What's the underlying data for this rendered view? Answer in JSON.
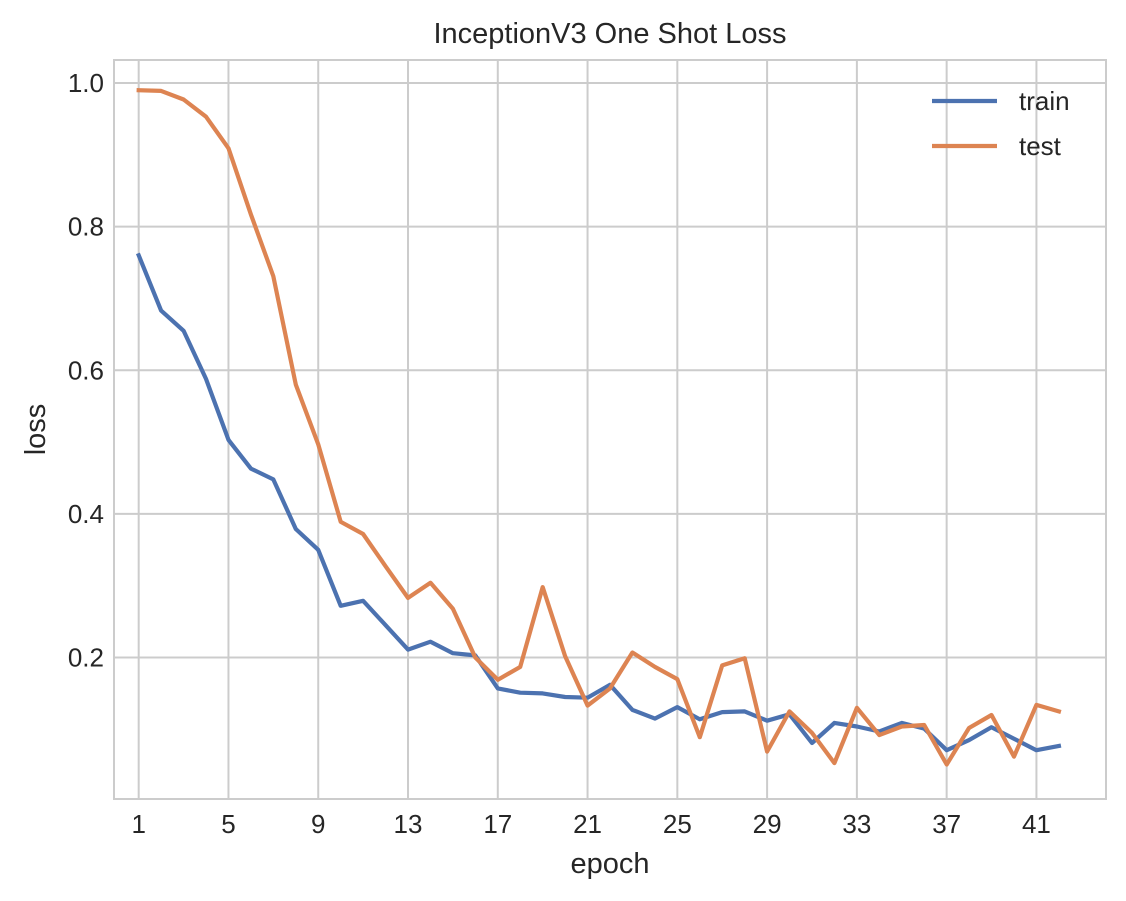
{
  "chart_data": {
    "type": "line",
    "title": "InceptionV3 One Shot Loss",
    "xlabel": "epoch",
    "ylabel": "loss",
    "xlim": [
      -0.1,
      44.1
    ],
    "ylim": [
      0.003,
      1.032
    ],
    "grid": true,
    "legend_position": "top-right",
    "x": [
      1,
      2,
      3,
      4,
      5,
      6,
      7,
      8,
      9,
      10,
      11,
      12,
      13,
      14,
      15,
      16,
      17,
      18,
      19,
      20,
      21,
      22,
      23,
      24,
      25,
      26,
      27,
      28,
      29,
      30,
      31,
      32,
      33,
      34,
      35,
      36,
      37,
      38,
      39,
      40,
      41,
      42
    ],
    "x_ticks": [
      1,
      5,
      9,
      13,
      17,
      21,
      25,
      29,
      33,
      37,
      41
    ],
    "x_tick_labels": [
      "1",
      "5",
      "9",
      "13",
      "17",
      "21",
      "25",
      "29",
      "33",
      "37",
      "41"
    ],
    "y_ticks": [
      0.2,
      0.4,
      0.6,
      0.8,
      1.0
    ],
    "y_tick_labels": [
      "0.2",
      "0.4",
      "0.6",
      "0.8",
      "1.0"
    ],
    "series": [
      {
        "name": "train",
        "color": "#4c72b0",
        "values": [
          0.76,
          0.683,
          0.655,
          0.588,
          0.503,
          0.463,
          0.448,
          0.379,
          0.35,
          0.272,
          0.279,
          0.245,
          0.211,
          0.222,
          0.206,
          0.203,
          0.157,
          0.151,
          0.15,
          0.145,
          0.144,
          0.162,
          0.127,
          0.115,
          0.131,
          0.114,
          0.124,
          0.125,
          0.112,
          0.121,
          0.081,
          0.109,
          0.104,
          0.097,
          0.109,
          0.101,
          0.071,
          0.085,
          0.103,
          0.087,
          0.071,
          0.077
        ]
      },
      {
        "name": "test",
        "color": "#dd8452",
        "values": [
          0.99,
          0.989,
          0.977,
          0.953,
          0.909,
          0.817,
          0.731,
          0.58,
          0.497,
          0.389,
          0.372,
          0.327,
          0.283,
          0.304,
          0.268,
          0.2,
          0.169,
          0.187,
          0.298,
          0.202,
          0.133,
          0.157,
          0.207,
          0.187,
          0.17,
          0.089,
          0.189,
          0.199,
          0.069,
          0.125,
          0.095,
          0.053,
          0.13,
          0.092,
          0.104,
          0.106,
          0.051,
          0.102,
          0.12,
          0.062,
          0.134,
          0.125
        ]
      }
    ]
  }
}
